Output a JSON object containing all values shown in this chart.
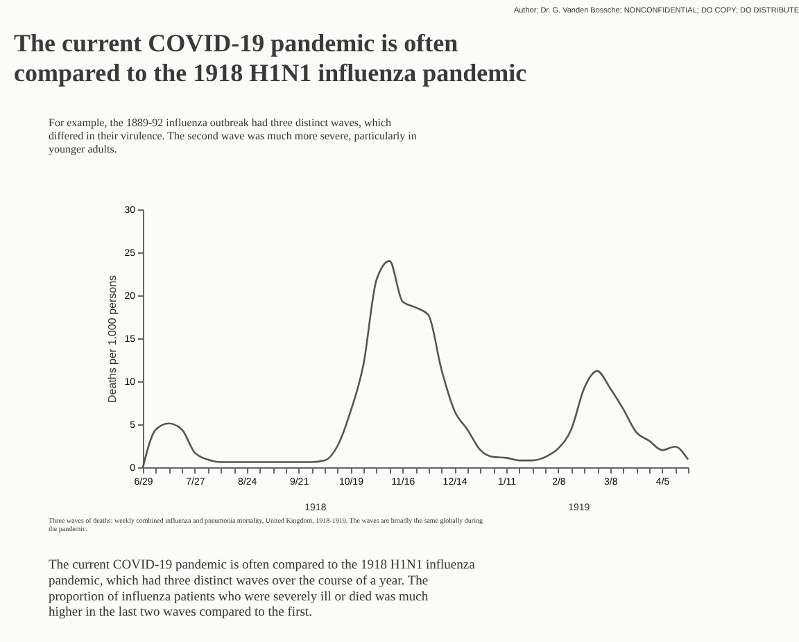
{
  "chart_data": {
    "type": "line",
    "title": "The current COVID-19 pandemic is often compared to the 1918 H1N1 influenza pandemic",
    "subtitle": "For example, the 1889-92 influenza outbreak had three distinct waves, which differed in their virulence. The second wave was much more severe, particularly in younger adults.",
    "ylabel": "Deaths per 1,000 persons",
    "categories": [
      "6/29",
      null,
      null,
      null,
      "7/27",
      null,
      null,
      null,
      "8/24",
      null,
      null,
      null,
      "9/21",
      null,
      null,
      null,
      "10/19",
      null,
      null,
      null,
      "11/16",
      null,
      null,
      null,
      "12/14",
      null,
      null,
      null,
      "1/11",
      null,
      null,
      null,
      "2/8",
      null,
      null,
      null,
      "3/8",
      null,
      null,
      null,
      "4/5",
      null,
      null
    ],
    "series": [
      {
        "color": "#555555",
        "values": [
          0,
          4.4,
          5.1,
          4.4,
          1.7,
          0.9,
          0.6,
          0.6,
          0.6,
          0.6,
          0.6,
          0.6,
          0.6,
          0.6,
          0.8,
          2.5,
          6.5,
          12,
          21.8,
          24,
          19.3,
          18.6,
          17.7,
          11.4,
          6.6,
          4.4,
          2,
          1.2,
          1.1,
          0.8,
          0.8,
          1.2,
          2.2,
          4.4,
          9.2,
          11.2,
          9.2,
          6.8,
          4.1,
          3.1,
          2,
          2.4,
          0.9
        ]
      }
    ],
    "ylim": [
      0,
      30
    ],
    "yticks": [
      0,
      5,
      10,
      15,
      20,
      25,
      30
    ],
    "grid": false,
    "marker": "none",
    "line_style": "solid",
    "annotations": [
      "Author: Dr. G. Vanden Bossche; NONCONFIDENTIAL; DO COPY; DO DISTRIBUTE",
      "1918",
      "1919",
      "Three waves of deaths: weekly combined influenza and pneumonia mortality, United Kingdom, 1918-1919. The waves are broadly the same globally during the pandemic.",
      "The current COVID-19 pandemic is often compared to the 1918 H1N1 influenza pandemic, which had three distinct waves over the course of a year. The proportion of influenza patients who were severely ill or died was much higher in the last two waves compared to the first."
    ]
  }
}
